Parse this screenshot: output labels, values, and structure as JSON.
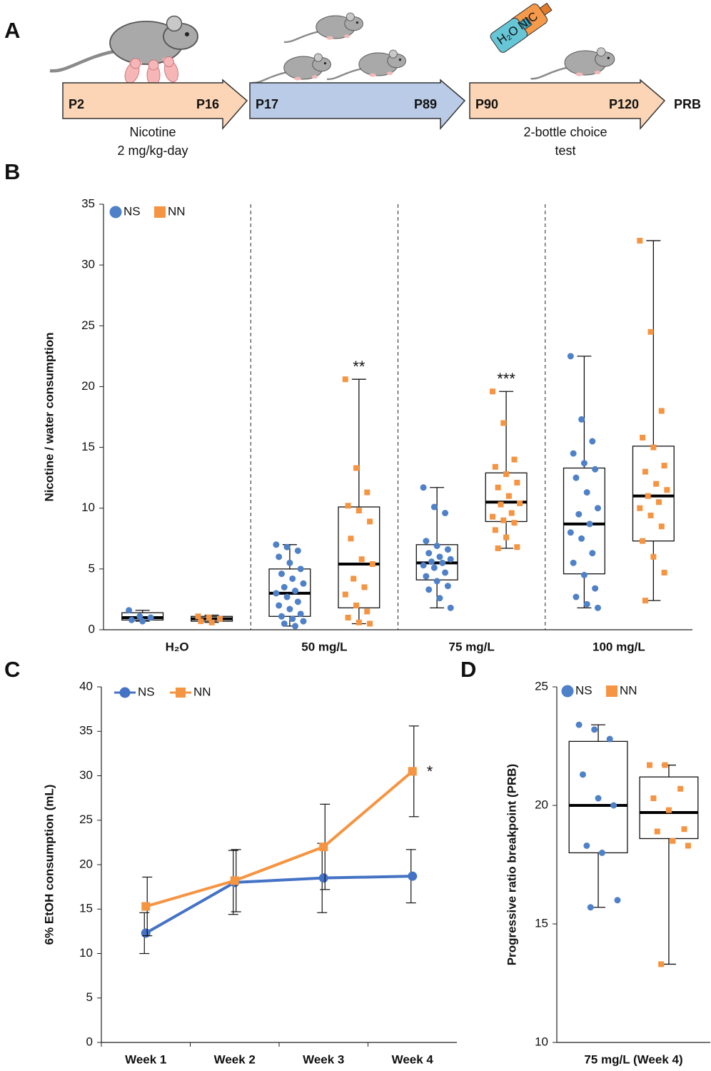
{
  "panel_labels": [
    "A",
    "B",
    "C",
    "D"
  ],
  "timeline": {
    "stages": [
      {
        "start": "P2",
        "end": "P16",
        "caption": [
          "Nicotine",
          "2 mg/kg-day"
        ]
      },
      {
        "start": "P17",
        "end": "P89"
      },
      {
        "start": "P90",
        "end": "P120",
        "caption": [
          "2-bottle choice",
          "test"
        ]
      }
    ],
    "final": "PRB",
    "bottle_labels": [
      "NIC",
      "H₂O"
    ]
  },
  "chart_data": [
    {
      "type": "box",
      "ylabel": "Nicotine / water consumption",
      "categories": [
        "H₂O",
        "50 mg/L",
        "75 mg/L",
        "100 mg/L"
      ],
      "ylim": [
        0,
        35
      ],
      "yticks": [
        0,
        5,
        10,
        15,
        20,
        25,
        30,
        35
      ],
      "category_separators": true,
      "legend": "top-left",
      "series": [
        {
          "name": "NS",
          "color": "#4f81c8",
          "marker": "circle",
          "boxes": [
            {
              "min": 0.7,
              "q1": 0.8,
              "median": 1.0,
              "q3": 1.4,
              "max": 1.6
            },
            {
              "min": 0.3,
              "q1": 1.1,
              "median": 3.0,
              "q3": 5.0,
              "max": 7.0
            },
            {
              "min": 1.8,
              "q1": 4.1,
              "median": 5.5,
              "q3": 7.0,
              "max": 11.7
            },
            {
              "min": 1.8,
              "q1": 4.6,
              "median": 8.7,
              "q3": 13.3,
              "max": 22.5
            }
          ],
          "points": [
            [
              1.6,
              1.1,
              1.0,
              0.8,
              0.7
            ],
            [
              7.0,
              6.8,
              6.5,
              6.0,
              5.5,
              5.0,
              4.6,
              4.2,
              3.8,
              3.5,
              3.2,
              3.0,
              2.7,
              2.3,
              2.0,
              1.7,
              1.3,
              1.1,
              0.9,
              0.7,
              0.5,
              0.3
            ],
            [
              11.7,
              10.1,
              9.6,
              7.3,
              6.9,
              6.6,
              6.3,
              6.0,
              5.8,
              5.6,
              5.5,
              5.3,
              5.1,
              4.7,
              4.4,
              4.0,
              3.6,
              3.3,
              2.6,
              1.8
            ],
            [
              22.5,
              17.3,
              15.5,
              14.5,
              13.7,
              13.2,
              12.5,
              11.3,
              10.0,
              9.5,
              8.7,
              8.0,
              7.5,
              6.3,
              5.5,
              4.5,
              3.4,
              2.7,
              2.1,
              1.8
            ]
          ]
        },
        {
          "name": "NN",
          "color": "#f59441",
          "marker": "square",
          "boxes": [
            {
              "min": 0.6,
              "q1": 0.7,
              "median": 0.9,
              "q3": 1.1,
              "max": 1.2
            },
            {
              "min": 0.5,
              "q1": 1.8,
              "median": 5.4,
              "q3": 10.1,
              "max": 20.6
            },
            {
              "min": 6.7,
              "q1": 8.9,
              "median": 10.5,
              "q3": 12.9,
              "max": 19.6
            },
            {
              "min": 2.4,
              "q1": 7.3,
              "median": 11.0,
              "q3": 15.1,
              "max": 32.0
            }
          ],
          "points": [
            [
              1.1,
              1.0,
              0.9,
              0.7,
              0.6
            ],
            [
              20.6,
              13.3,
              11.3,
              10.2,
              9.8,
              8.9,
              7.5,
              5.8,
              5.4,
              4.2,
              3.5,
              2.9,
              2.0,
              1.5,
              1.0,
              0.6,
              0.5
            ],
            [
              19.6,
              17.0,
              14.0,
              13.4,
              12.8,
              12.1,
              11.7,
              11.0,
              10.4,
              10.3,
              9.6,
              9.3,
              9.0,
              8.8,
              8.2,
              7.6,
              6.8,
              6.7
            ],
            [
              32.0,
              24.5,
              18.0,
              15.8,
              15.0,
              13.5,
              13.0,
              12.0,
              11.5,
              11.0,
              10.5,
              10.0,
              9.4,
              8.5,
              7.3,
              6.0,
              4.7,
              2.4
            ]
          ]
        }
      ],
      "annotations": [
        {
          "text": "**",
          "category": "50 mg/L",
          "series": "NN"
        },
        {
          "text": "***",
          "category": "75 mg/L",
          "series": "NN"
        }
      ]
    },
    {
      "type": "line",
      "ylabel": "6% EtOH consumption (mL)",
      "categories": [
        "Week 1",
        "Week 2",
        "Week 3",
        "Week 4"
      ],
      "ylim": [
        0,
        40
      ],
      "yticks": [
        0,
        5,
        10,
        15,
        20,
        25,
        30,
        35,
        40
      ],
      "legend": "top-left",
      "series": [
        {
          "name": "NS",
          "color": "#4472c4",
          "marker": "circle",
          "values": [
            12.3,
            18.0,
            18.5,
            18.7
          ],
          "errors": [
            2.3,
            3.6,
            3.9,
            3.0
          ]
        },
        {
          "name": "NN",
          "color": "#f59441",
          "marker": "square",
          "values": [
            15.3,
            18.2,
            22.0,
            30.5
          ],
          "errors": [
            3.3,
            3.5,
            4.8,
            5.1
          ]
        }
      ],
      "annotations": [
        {
          "text": "*",
          "category": "Week 4",
          "series": "NN"
        }
      ]
    },
    {
      "type": "box",
      "ylabel": "Progressive ratio breakpoint (PRB)",
      "categories": [
        "75 mg/L (Week 4)"
      ],
      "ylim": [
        10,
        25
      ],
      "yticks": [
        10,
        15,
        20,
        25
      ],
      "legend": "top-left",
      "series": [
        {
          "name": "NS",
          "color": "#4f81c8",
          "marker": "circle",
          "boxes": [
            {
              "min": 15.7,
              "q1": 18.0,
              "median": 20.0,
              "q3": 22.7,
              "max": 23.4
            }
          ],
          "points": [
            [
              23.4,
              23.2,
              22.8,
              21.3,
              20.3,
              20.0,
              18.3,
              18.0,
              16.0,
              15.7
            ]
          ]
        },
        {
          "name": "NN",
          "color": "#f59441",
          "marker": "square",
          "boxes": [
            {
              "min": 13.3,
              "q1": 18.6,
              "median": 19.7,
              "q3": 21.2,
              "max": 21.7
            }
          ],
          "points": [
            [
              21.7,
              21.7,
              20.7,
              20.3,
              19.8,
              19.0,
              18.9,
              18.5,
              18.3,
              13.3
            ]
          ]
        }
      ]
    }
  ]
}
